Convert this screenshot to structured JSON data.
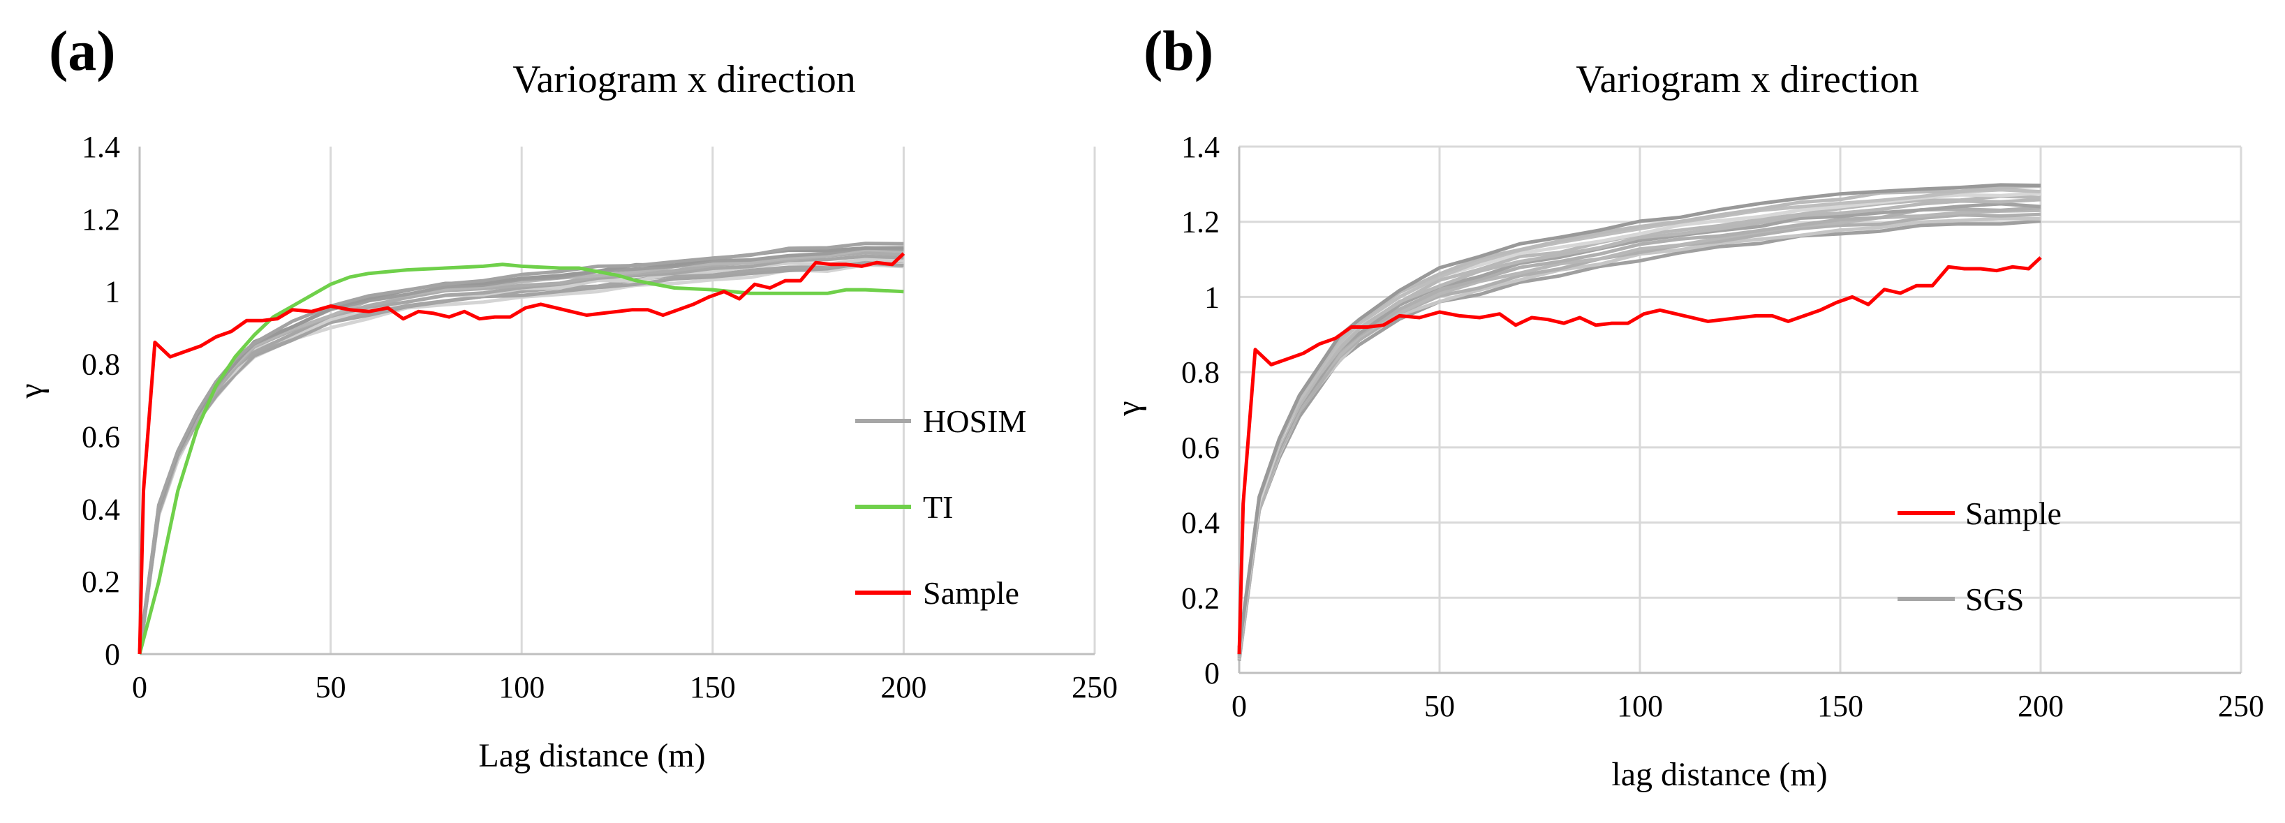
{
  "chart_data": [
    {
      "panel": "(a)",
      "type": "line",
      "title": "Variogram x direction",
      "xlabel": "Lag distance (m)",
      "ylabel": "γ",
      "xlim": [
        0,
        250
      ],
      "ylim": [
        0,
        1.4
      ],
      "xticks": [
        "0",
        "50",
        "100",
        "150",
        "200",
        "250"
      ],
      "yticks": [
        "0",
        "0.2",
        "0.4",
        "0.6",
        "0.8",
        "1",
        "1.2",
        "1.4"
      ],
      "grid": "vertical",
      "legend_position": "right",
      "legend": [
        "HOSIM",
        "TI",
        "Sample"
      ],
      "series": [
        {
          "name": "HOSIM",
          "color": "#a6a6a6",
          "group": true,
          "realizations": 10,
          "spread": 0.03,
          "x": [
            0,
            5,
            10,
            15,
            20,
            25,
            30,
            40,
            50,
            60,
            70,
            80,
            90,
            100,
            110,
            120,
            130,
            140,
            150,
            160,
            170,
            180,
            190,
            200
          ],
          "y": [
            0,
            0.4,
            0.55,
            0.65,
            0.73,
            0.79,
            0.84,
            0.89,
            0.93,
            0.96,
            0.98,
            0.995,
            1.005,
            1.015,
            1.025,
            1.035,
            1.045,
            1.055,
            1.065,
            1.075,
            1.085,
            1.09,
            1.1,
            1.1
          ]
        },
        {
          "name": "TI",
          "color": "#6fd04a",
          "group": false,
          "x": [
            0,
            5,
            10,
            15,
            20,
            25,
            30,
            35,
            40,
            45,
            50,
            55,
            60,
            70,
            80,
            90,
            95,
            100,
            110,
            115,
            120,
            125,
            130,
            140,
            150,
            160,
            170,
            180,
            185,
            190,
            200
          ],
          "y": [
            0,
            0.2,
            0.45,
            0.62,
            0.74,
            0.82,
            0.88,
            0.93,
            0.96,
            0.99,
            1.02,
            1.04,
            1.05,
            1.06,
            1.065,
            1.07,
            1.075,
            1.07,
            1.065,
            1.065,
            1.055,
            1.045,
            1.03,
            1.01,
            1.005,
            0.995,
            0.995,
            0.995,
            1.005,
            1.005,
            1.0
          ]
        },
        {
          "name": "Sample",
          "color": "#ff0000",
          "group": false,
          "x": [
            0,
            1,
            4,
            8,
            12,
            16,
            20,
            24,
            28,
            32,
            36,
            40,
            45,
            50,
            55,
            60,
            65,
            69,
            73,
            77,
            81,
            85,
            89,
            93,
            97,
            101,
            105,
            109,
            113,
            117,
            121,
            125,
            129,
            133,
            137,
            141,
            145,
            149,
            153,
            157,
            161,
            165,
            169,
            173,
            177,
            181,
            185,
            189,
            193,
            197,
            200
          ],
          "y": [
            0,
            0.45,
            0.86,
            0.82,
            0.835,
            0.85,
            0.875,
            0.89,
            0.92,
            0.92,
            0.925,
            0.95,
            0.945,
            0.96,
            0.95,
            0.945,
            0.955,
            0.925,
            0.945,
            0.94,
            0.93,
            0.945,
            0.925,
            0.93,
            0.93,
            0.955,
            0.965,
            0.955,
            0.945,
            0.935,
            0.94,
            0.945,
            0.95,
            0.95,
            0.935,
            0.95,
            0.965,
            0.985,
            1.0,
            0.98,
            1.02,
            1.01,
            1.03,
            1.03,
            1.08,
            1.075,
            1.075,
            1.07,
            1.08,
            1.075,
            1.105
          ]
        }
      ]
    },
    {
      "panel": "(b)",
      "type": "line",
      "title": "Variogram x direction",
      "xlabel": "lag distance (m)",
      "ylabel": "γ",
      "xlim": [
        0,
        250
      ],
      "ylim": [
        0,
        1.4
      ],
      "xticks": [
        "0",
        "50",
        "100",
        "150",
        "200",
        "250"
      ],
      "yticks": [
        "0",
        "0.2",
        "0.4",
        "0.6",
        "0.8",
        "1",
        "1.2",
        "1.4"
      ],
      "grid": "both",
      "legend_position": "bottom-right",
      "legend": [
        "Sample",
        "SGS"
      ],
      "series": [
        {
          "name": "SGS",
          "color": "#a6a6a6",
          "group": true,
          "realizations": 12,
          "spread": 0.05,
          "x": [
            0,
            5,
            10,
            15,
            20,
            25,
            30,
            40,
            50,
            60,
            70,
            80,
            90,
            100,
            110,
            120,
            130,
            140,
            150,
            160,
            170,
            180,
            190,
            200
          ],
          "y": [
            0.05,
            0.45,
            0.6,
            0.71,
            0.79,
            0.86,
            0.91,
            0.98,
            1.03,
            1.06,
            1.09,
            1.11,
            1.13,
            1.15,
            1.165,
            1.18,
            1.195,
            1.21,
            1.22,
            1.23,
            1.24,
            1.245,
            1.25,
            1.25
          ]
        },
        {
          "name": "Sample",
          "color": "#ff0000",
          "group": false,
          "x": [
            0,
            1,
            4,
            8,
            12,
            16,
            20,
            24,
            28,
            32,
            36,
            40,
            45,
            50,
            55,
            60,
            65,
            69,
            73,
            77,
            81,
            85,
            89,
            93,
            97,
            101,
            105,
            109,
            113,
            117,
            121,
            125,
            129,
            133,
            137,
            141,
            145,
            149,
            153,
            157,
            161,
            165,
            169,
            173,
            177,
            181,
            185,
            189,
            193,
            197,
            200
          ],
          "y": [
            0.05,
            0.45,
            0.86,
            0.82,
            0.835,
            0.85,
            0.875,
            0.89,
            0.92,
            0.92,
            0.925,
            0.95,
            0.945,
            0.96,
            0.95,
            0.945,
            0.955,
            0.925,
            0.945,
            0.94,
            0.93,
            0.945,
            0.925,
            0.93,
            0.93,
            0.955,
            0.965,
            0.955,
            0.945,
            0.935,
            0.94,
            0.945,
            0.95,
            0.95,
            0.935,
            0.95,
            0.965,
            0.985,
            1.0,
            0.98,
            1.02,
            1.01,
            1.03,
            1.03,
            1.08,
            1.075,
            1.075,
            1.07,
            1.08,
            1.075,
            1.105
          ]
        }
      ]
    }
  ]
}
